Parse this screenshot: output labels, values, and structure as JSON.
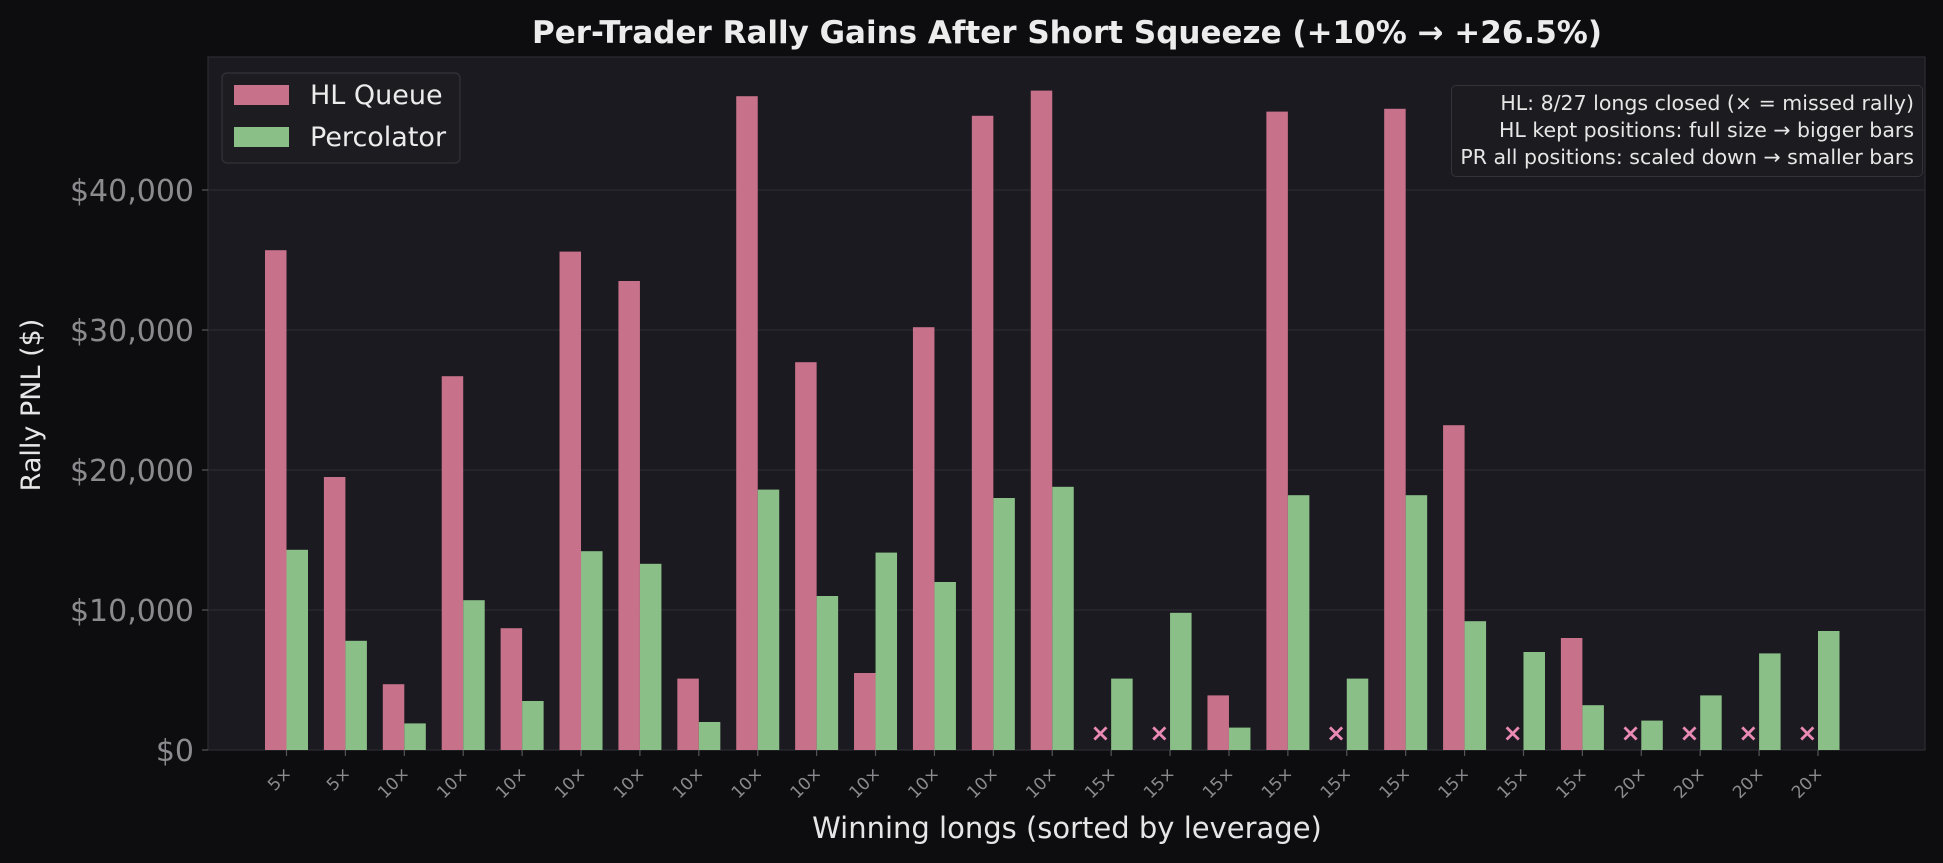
{
  "chart_data": {
    "type": "bar",
    "title": "Per-Trader Rally Gains After Short Squeeze (+10% → +26.5%)",
    "xlabel": "Winning longs (sorted by leverage)",
    "ylabel": "Rally PNL ($)",
    "ylim": [
      0,
      49500
    ],
    "yticks": [
      0,
      10000,
      20000,
      30000,
      40000
    ],
    "ytick_labels": [
      "$0",
      "$10,000",
      "$20,000",
      "$30,000",
      "$40,000"
    ],
    "grid": true,
    "legend_position": "top-left",
    "categories": [
      "5×",
      "5×",
      "10×",
      "10×",
      "10×",
      "10×",
      "10×",
      "10×",
      "10×",
      "10×",
      "10×",
      "10×",
      "10×",
      "10×",
      "15×",
      "15×",
      "15×",
      "15×",
      "15×",
      "15×",
      "15×",
      "15×",
      "15×",
      "20×",
      "20×",
      "20×",
      "20×"
    ],
    "series": [
      {
        "name": "HL Queue",
        "color": "#c8718a",
        "values": [
          35700,
          19500,
          4700,
          26700,
          8700,
          35600,
          33500,
          5100,
          46700,
          27700,
          5500,
          30200,
          45300,
          47100,
          0,
          0,
          3900,
          45600,
          0,
          45800,
          23200,
          0,
          8000,
          0,
          0,
          0,
          0
        ],
        "missed": [
          false,
          false,
          false,
          false,
          false,
          false,
          false,
          false,
          false,
          false,
          false,
          false,
          false,
          false,
          true,
          true,
          false,
          false,
          true,
          false,
          false,
          true,
          false,
          true,
          true,
          true,
          true
        ]
      },
      {
        "name": "Percolator",
        "color": "#8bbf88",
        "values": [
          14300,
          7800,
          1900,
          10700,
          3500,
          14200,
          13300,
          2000,
          18600,
          11000,
          14100,
          12000,
          18000,
          18800,
          5100,
          9800,
          1600,
          18200,
          5100,
          18200,
          9200,
          7000,
          3200,
          2100,
          3900,
          6900,
          8500
        ]
      }
    ],
    "missed_marker": "×",
    "missed_color": "#e98ab4",
    "annotation": {
      "lines": [
        "HL: 8/27 longs closed (× = missed rally)",
        "HL kept positions: full size → bigger bars",
        "PR all positions: scaled down → smaller bars"
      ]
    }
  }
}
